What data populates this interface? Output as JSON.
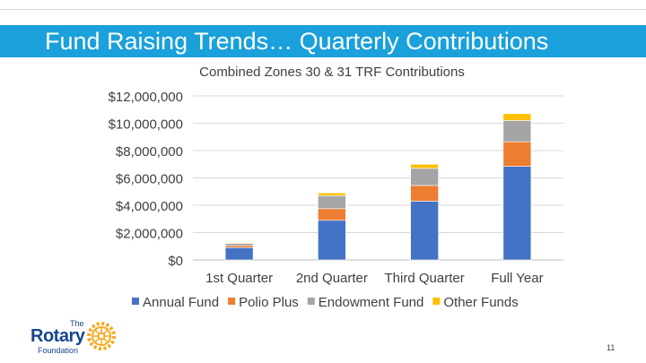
{
  "slide": {
    "title": "Fund Raising Trends… Quarterly Contributions",
    "page_number": "11"
  },
  "logo": {
    "the": "The",
    "rotary": "Rotary",
    "foundation": "Foundation"
  },
  "colors": {
    "title_bar": "#1aa0db",
    "annual_fund": "#4472c4",
    "polio_plus": "#ed7d31",
    "endowment_fund": "#a5a5a5",
    "other_funds": "#ffc000"
  },
  "chart_data": {
    "type": "bar",
    "stacked": true,
    "title": "Combined Zones 30 & 31 TRF Contributions",
    "categories": [
      "1st Quarter",
      "2nd Quarter",
      "Third Quarter",
      "Full Year"
    ],
    "series": [
      {
        "name": "Annual Fund",
        "color": "#4472c4",
        "values": [
          900000,
          2900000,
          4300000,
          6850000
        ]
      },
      {
        "name": "Polio Plus",
        "color": "#ed7d31",
        "values": [
          150000,
          850000,
          1150000,
          1800000
        ]
      },
      {
        "name": "Endowment Fund",
        "color": "#a5a5a5",
        "values": [
          150000,
          950000,
          1250000,
          1550000
        ]
      },
      {
        "name": "Other Funds",
        "color": "#ffc000",
        "values": [
          50000,
          200000,
          300000,
          500000
        ]
      }
    ],
    "ylim": [
      0,
      12000000
    ],
    "yticks": [
      0,
      2000000,
      4000000,
      6000000,
      8000000,
      10000000,
      12000000
    ],
    "ytick_labels": [
      "$0",
      "$2,000,000",
      "$4,000,000",
      "$6,000,000",
      "$8,000,000",
      "$10,000,000",
      "$12,000,000"
    ],
    "xlabel": "",
    "ylabel": "",
    "grid": true,
    "legend_position": "bottom"
  }
}
